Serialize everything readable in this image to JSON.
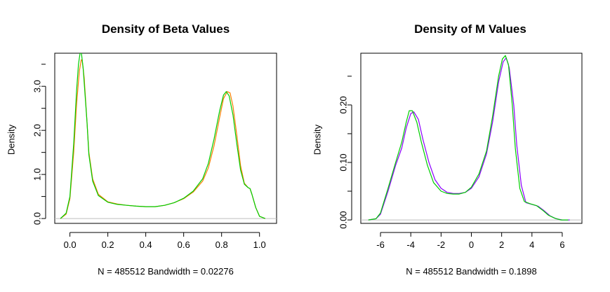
{
  "chart_data": [
    {
      "type": "line",
      "title": "Density of Beta Values",
      "xlabel": "N = 485512   Bandwidth = 0.02276",
      "ylabel": "Density",
      "xlim": [
        -0.08,
        1.09
      ],
      "ylim": [
        -0.11,
        3.75
      ],
      "x_ticks": [
        0.0,
        0.2,
        0.4,
        0.6,
        0.8,
        1.0
      ],
      "x_tick_labels": [
        "0.0",
        "0.2",
        "0.4",
        "0.6",
        "0.8",
        "1.0"
      ],
      "y_ticks": [
        0.0,
        1.0,
        2.0,
        3.0
      ],
      "y_tick_labels": [
        "0.0",
        "1.0",
        "2.0",
        "3.0"
      ],
      "baseline": 0,
      "series": [
        {
          "color": "#FF7F00",
          "x": [
            -0.05,
            -0.02,
            0.0,
            0.02,
            0.035,
            0.05,
            0.06,
            0.065,
            0.075,
            0.09,
            0.1,
            0.12,
            0.15,
            0.2,
            0.25,
            0.3,
            0.35,
            0.4,
            0.45,
            0.5,
            0.55,
            0.6,
            0.65,
            0.7,
            0.73,
            0.76,
            0.79,
            0.81,
            0.83,
            0.845,
            0.86,
            0.88,
            0.9,
            0.92,
            0.94,
            0.95,
            0.96,
            0.98,
            1.0,
            1.03
          ],
          "y": [
            0.0,
            0.1,
            0.45,
            1.5,
            2.6,
            3.35,
            3.6,
            3.58,
            3.2,
            2.2,
            1.5,
            0.9,
            0.55,
            0.38,
            0.33,
            0.3,
            0.28,
            0.27,
            0.27,
            0.3,
            0.36,
            0.45,
            0.6,
            0.85,
            1.15,
            1.65,
            2.3,
            2.72,
            2.88,
            2.85,
            2.55,
            1.9,
            1.2,
            0.8,
            0.7,
            0.68,
            0.55,
            0.25,
            0.05,
            0.0
          ]
        },
        {
          "color": "#00CD00",
          "x": [
            -0.05,
            -0.02,
            0.0,
            0.02,
            0.035,
            0.045,
            0.055,
            0.06,
            0.07,
            0.09,
            0.1,
            0.12,
            0.15,
            0.2,
            0.25,
            0.3,
            0.35,
            0.4,
            0.45,
            0.5,
            0.55,
            0.6,
            0.65,
            0.7,
            0.73,
            0.76,
            0.79,
            0.81,
            0.825,
            0.84,
            0.86,
            0.88,
            0.9,
            0.92,
            0.94,
            0.95,
            0.96,
            0.98,
            1.0,
            1.03
          ],
          "y": [
            0.0,
            0.12,
            0.5,
            1.7,
            2.9,
            3.5,
            3.8,
            3.78,
            3.4,
            2.2,
            1.45,
            0.85,
            0.52,
            0.37,
            0.32,
            0.3,
            0.28,
            0.27,
            0.27,
            0.3,
            0.36,
            0.46,
            0.62,
            0.9,
            1.25,
            1.8,
            2.45,
            2.8,
            2.88,
            2.78,
            2.35,
            1.7,
            1.1,
            0.78,
            0.7,
            0.68,
            0.55,
            0.25,
            0.05,
            0.0
          ]
        }
      ]
    },
    {
      "type": "line",
      "title": "Density of M Values",
      "xlabel": "N = 485512   Bandwidth = 0.1898",
      "ylabel": "Density",
      "xlim": [
        -7.3,
        7.3
      ],
      "ylim": [
        -0.006,
        0.29
      ],
      "x_ticks": [
        -6,
        -4,
        -2,
        0,
        2,
        4,
        6
      ],
      "x_tick_labels": [
        "-6",
        "-4",
        "-2",
        "0",
        "2",
        "4",
        "6"
      ],
      "y_ticks": [
        0.0,
        0.1,
        0.2
      ],
      "y_tick_labels": [
        "0.00",
        "0.10",
        "0.20"
      ],
      "baseline": 0,
      "series": [
        {
          "color": "#8B00FF",
          "x": [
            -6.8,
            -6.3,
            -6.0,
            -5.5,
            -5.0,
            -4.6,
            -4.3,
            -4.0,
            -3.8,
            -3.5,
            -3.2,
            -2.8,
            -2.4,
            -2.0,
            -1.6,
            -1.2,
            -0.8,
            -0.4,
            0.0,
            0.5,
            1.0,
            1.4,
            1.8,
            2.1,
            2.3,
            2.5,
            2.8,
            3.0,
            3.3,
            3.6,
            4.0,
            4.4,
            4.8,
            5.2,
            5.6,
            6.0,
            6.5
          ],
          "y": [
            0.0,
            0.002,
            0.01,
            0.05,
            0.095,
            0.125,
            0.16,
            0.185,
            0.188,
            0.175,
            0.14,
            0.1,
            0.07,
            0.055,
            0.048,
            0.046,
            0.046,
            0.048,
            0.055,
            0.075,
            0.115,
            0.17,
            0.24,
            0.275,
            0.282,
            0.265,
            0.2,
            0.13,
            0.06,
            0.03,
            0.027,
            0.024,
            0.016,
            0.007,
            0.002,
            0.0,
            0.0
          ]
        },
        {
          "color": "#00CD00",
          "x": [
            -6.8,
            -6.3,
            -6.0,
            -5.5,
            -5.0,
            -4.6,
            -4.3,
            -4.1,
            -3.9,
            -3.6,
            -3.3,
            -2.9,
            -2.5,
            -2.0,
            -1.6,
            -1.2,
            -0.8,
            -0.4,
            0.0,
            0.5,
            1.0,
            1.4,
            1.8,
            2.05,
            2.25,
            2.45,
            2.7,
            2.9,
            3.2,
            3.5,
            3.9,
            4.3,
            4.7,
            5.1,
            5.5,
            5.9,
            6.4
          ],
          "y": [
            0.0,
            0.002,
            0.012,
            0.055,
            0.1,
            0.135,
            0.17,
            0.19,
            0.19,
            0.17,
            0.135,
            0.095,
            0.065,
            0.05,
            0.046,
            0.045,
            0.045,
            0.048,
            0.057,
            0.08,
            0.12,
            0.18,
            0.25,
            0.28,
            0.286,
            0.27,
            0.2,
            0.125,
            0.055,
            0.032,
            0.028,
            0.025,
            0.017,
            0.008,
            0.003,
            0.0,
            0.0
          ]
        }
      ]
    }
  ]
}
